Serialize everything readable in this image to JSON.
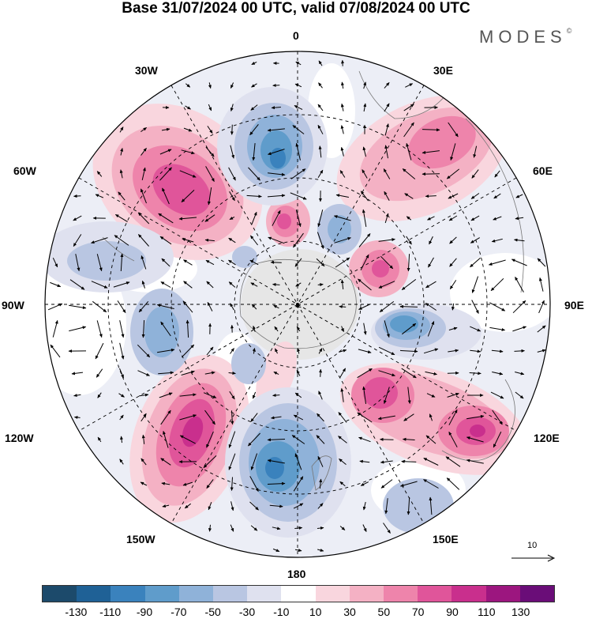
{
  "title": "Base 31/07/2024 00 UTC, valid 07/08/2024 00 UTC",
  "brand": "MODES",
  "brand_mark": "©",
  "lon_labels": {
    "top": "0",
    "top_right": "30E",
    "upper_right": "60E",
    "right": "90E",
    "lower_right": "120E",
    "bottom_right": "150E",
    "bottom": "180",
    "bottom_left": "150W",
    "lower_left": "120W",
    "left": "90W",
    "upper_left": "60W",
    "top_left": "30W"
  },
  "reference_vector": "10",
  "colorbar": {
    "colors": [
      "#1c4a6b",
      "#1f6196",
      "#3a82bd",
      "#5f9ccb",
      "#8fb2d9",
      "#b9c6e2",
      "#dfe1ef",
      "#ffffff",
      "#f9d6de",
      "#f4b1c4",
      "#ee84ab",
      "#e0559a",
      "#c92f8d",
      "#9c167f",
      "#6a0d78"
    ],
    "ticks": [
      "-130",
      "-110",
      "-90",
      "-70",
      "-50",
      "-30",
      "-10",
      "10",
      "30",
      "50",
      "70",
      "90",
      "110",
      "130"
    ]
  },
  "map_layers": {
    "shaded_field": "anomaly",
    "vectors": "wind",
    "projection": "south-polar-stereographic",
    "grid": "dashed"
  }
}
